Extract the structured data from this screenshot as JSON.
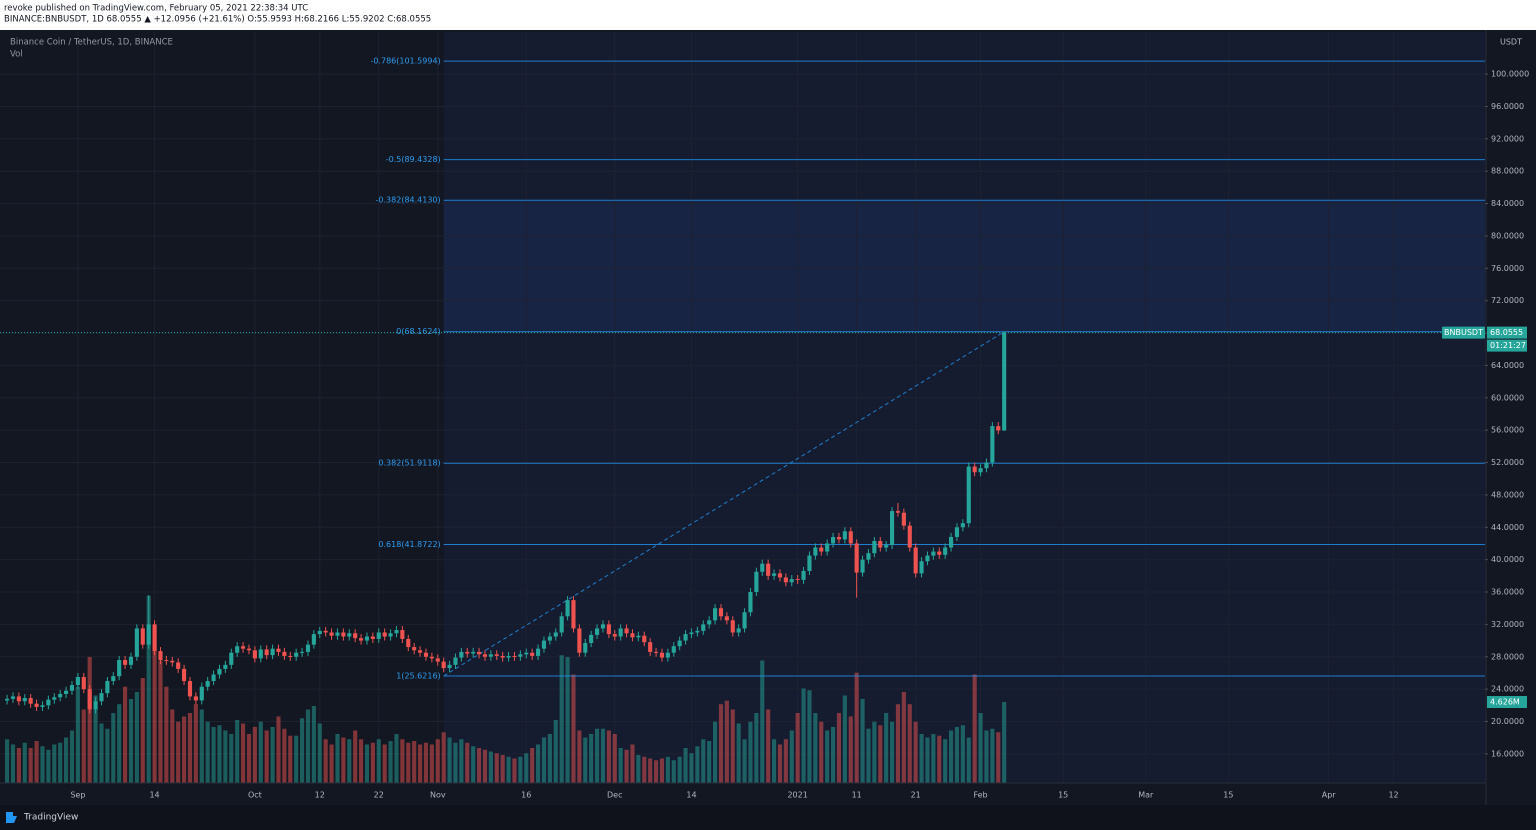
{
  "header": {
    "line1": "revoke published on TradingView.com, February 05, 2021 22:38:34 UTC",
    "line2": "BINANCE:BNBUSDT, 1D  68.0555  ▲ +12.0956 (+21.61%)  O:55.9593  H:68.2166  L:55.9202  C:68.0555"
  },
  "chart_data": {
    "type": "candlestick",
    "title": "Binance Coin / TetherUS, 1D, BINANCE",
    "volume_title": "Vol",
    "up_color": "#26a69a",
    "down_color": "#ef5350",
    "grid": true,
    "open": [
      22.6,
      22.8,
      23.1,
      22.5,
      22.9,
      22.2,
      21.8,
      22.0,
      22.7,
      23.0,
      23.4,
      23.8,
      24.5,
      25.5,
      24.0,
      21.5,
      22.5,
      23.5,
      25.0,
      25.6,
      27.6,
      27.0,
      28.0,
      31.5,
      29.5,
      32.0,
      28.7,
      27.6,
      27.5,
      27.3,
      26.5,
      25.0,
      23.1,
      22.6,
      24.3,
      25.0,
      25.8,
      26.5,
      27.0,
      28.5,
      29.3,
      29.0,
      28.8,
      27.8,
      28.9,
      28.2,
      29.0,
      28.6,
      28.1,
      28.0,
      28.5,
      28.6,
      29.5,
      30.8,
      31.2,
      31.0,
      30.6,
      31.0,
      30.5,
      30.9,
      30.3,
      30.0,
      30.5,
      30.2,
      31.0,
      30.5,
      30.9,
      31.3,
      30.2,
      29.2,
      28.8,
      28.5,
      28.0,
      27.8,
      27.4,
      26.6,
      27.0,
      27.9,
      28.6,
      28.4,
      28.6,
      28.3,
      28.0,
      28.3,
      28.1,
      27.9,
      28.1,
      28.0,
      28.3,
      28.5,
      28.1,
      29.0,
      30.0,
      30.5,
      31.0,
      33.0,
      35.0,
      31.5,
      28.5,
      29.7,
      30.7,
      31.5,
      32.0,
      30.8,
      30.5,
      31.5,
      30.9,
      30.4,
      30.6,
      29.8,
      28.6,
      28.5,
      27.9,
      28.5,
      29.3,
      30.0,
      30.8,
      31.0,
      31.2,
      32.0,
      32.5,
      34.0,
      33.0,
      32.5,
      31.0,
      31.5,
      33.5,
      36.0,
      38.5,
      39.5,
      38.0,
      38.3,
      37.8,
      37.2,
      37.6,
      37.5,
      38.6,
      40.5,
      41.5,
      41.0,
      42.0,
      42.8,
      42.5,
      43.5,
      42.0,
      38.4,
      40.0,
      40.8,
      42.3,
      41.5,
      41.8,
      46.0,
      45.8,
      44.2,
      41.5,
      38.3,
      39.8,
      40.5,
      41.0,
      40.6,
      41.5,
      42.8,
      44.0,
      44.5,
      51.5,
      50.8,
      51.3,
      52.0,
      56.5,
      55.96
    ],
    "high": [
      23.3,
      23.6,
      23.6,
      23.4,
      23.4,
      22.7,
      22.5,
      23.2,
      23.5,
      23.9,
      24.3,
      25.0,
      26.0,
      26.0,
      24.5,
      23.0,
      24.0,
      25.5,
      26.1,
      28.1,
      28.1,
      28.5,
      32.0,
      32.0,
      35.6,
      32.5,
      29.2,
      28.1,
      28.0,
      27.8,
      27.0,
      25.5,
      23.6,
      24.8,
      25.5,
      26.3,
      27.0,
      27.5,
      29.0,
      29.8,
      29.8,
      29.5,
      29.3,
      29.4,
      29.4,
      29.5,
      29.5,
      29.1,
      28.6,
      29.0,
      29.1,
      30.0,
      31.3,
      31.7,
      31.7,
      31.5,
      31.5,
      31.5,
      31.4,
      31.4,
      30.8,
      31.0,
      31.0,
      31.5,
      31.5,
      31.4,
      31.8,
      31.8,
      30.7,
      29.7,
      29.3,
      29.0,
      28.5,
      28.3,
      27.9,
      27.5,
      28.4,
      29.1,
      29.1,
      29.1,
      29.1,
      28.8,
      28.8,
      28.8,
      28.6,
      28.6,
      28.6,
      28.8,
      29.0,
      29.0,
      29.5,
      30.5,
      31.0,
      31.5,
      33.5,
      35.5,
      35.5,
      32.0,
      30.2,
      31.2,
      32.0,
      32.5,
      32.5,
      31.3,
      32.0,
      32.0,
      31.4,
      31.1,
      31.1,
      30.3,
      29.1,
      29.0,
      29.0,
      29.8,
      30.5,
      31.3,
      31.5,
      31.7,
      32.5,
      33.0,
      34.5,
      34.5,
      33.5,
      33.0,
      32.0,
      34.0,
      36.5,
      39.0,
      40.0,
      40.0,
      38.8,
      38.8,
      38.3,
      38.1,
      38.1,
      39.1,
      41.0,
      42.0,
      42.0,
      42.5,
      43.3,
      43.3,
      44.0,
      44.0,
      42.5,
      40.5,
      41.3,
      42.8,
      42.8,
      42.3,
      46.5,
      47.0,
      46.3,
      44.7,
      42.0,
      40.3,
      41.0,
      41.5,
      41.5,
      42.0,
      43.3,
      44.5,
      45.0,
      52.0,
      52.0,
      51.8,
      52.5,
      57.0,
      57.0,
      68.22
    ],
    "low": [
      22.1,
      22.3,
      22.0,
      22.0,
      21.7,
      21.3,
      21.3,
      21.5,
      22.2,
      22.5,
      22.9,
      23.3,
      24.0,
      23.5,
      21.0,
      21.0,
      22.0,
      23.0,
      24.5,
      25.1,
      26.5,
      26.5,
      27.5,
      29.0,
      29.0,
      28.2,
      27.1,
      27.0,
      26.8,
      26.0,
      24.5,
      22.6,
      22.1,
      22.1,
      23.8,
      24.5,
      25.3,
      26.0,
      26.5,
      28.0,
      28.5,
      28.3,
      27.3,
      27.3,
      27.7,
      27.7,
      28.1,
      27.6,
      27.5,
      27.5,
      28.0,
      28.1,
      29.0,
      30.3,
      30.5,
      30.1,
      30.1,
      30.0,
      30.0,
      29.8,
      29.5,
      29.5,
      29.7,
      29.7,
      30.0,
      30.0,
      30.4,
      29.7,
      28.7,
      28.3,
      28.0,
      27.5,
      27.3,
      26.9,
      26.1,
      26.1,
      26.5,
      27.4,
      27.9,
      27.9,
      27.8,
      27.5,
      27.5,
      27.6,
      27.4,
      27.4,
      27.5,
      27.5,
      27.8,
      27.6,
      27.6,
      28.5,
      29.5,
      30.0,
      30.5,
      32.5,
      31.0,
      28.0,
      28.0,
      29.2,
      30.2,
      31.0,
      30.3,
      30.0,
      30.0,
      30.4,
      29.9,
      29.9,
      29.3,
      28.1,
      28.0,
      27.4,
      27.4,
      28.0,
      28.8,
      29.5,
      30.3,
      30.5,
      30.7,
      31.5,
      32.0,
      32.5,
      32.0,
      30.5,
      30.5,
      31.0,
      33.0,
      35.5,
      38.0,
      37.5,
      37.5,
      37.3,
      36.7,
      36.7,
      37.0,
      37.0,
      38.1,
      40.0,
      40.5,
      40.5,
      41.5,
      42.0,
      42.0,
      41.5,
      35.3,
      37.9,
      39.5,
      40.3,
      41.0,
      41.0,
      41.3,
      45.3,
      43.7,
      41.0,
      37.8,
      37.8,
      39.3,
      40.0,
      40.1,
      40.1,
      41.0,
      42.3,
      43.5,
      44.0,
      50.3,
      50.3,
      50.8,
      51.5,
      55.5,
      55.92
    ],
    "close": [
      22.8,
      23.1,
      22.5,
      22.9,
      22.2,
      21.8,
      22.0,
      22.7,
      23.0,
      23.4,
      23.8,
      24.5,
      25.5,
      24.0,
      21.5,
      22.5,
      23.5,
      25.0,
      25.6,
      27.6,
      27.0,
      28.0,
      31.5,
      29.5,
      32.0,
      28.7,
      27.6,
      27.5,
      27.3,
      26.5,
      25.0,
      23.1,
      22.6,
      24.3,
      25.0,
      25.8,
      26.5,
      27.0,
      28.5,
      29.3,
      29.0,
      28.8,
      27.8,
      28.9,
      28.2,
      29.0,
      28.6,
      28.1,
      28.0,
      28.5,
      28.6,
      29.5,
      30.8,
      31.2,
      31.0,
      30.6,
      31.0,
      30.5,
      30.9,
      30.3,
      30.0,
      30.5,
      30.2,
      31.0,
      30.5,
      30.9,
      31.3,
      30.2,
      29.2,
      28.8,
      28.5,
      28.0,
      27.8,
      27.4,
      26.6,
      27.0,
      27.9,
      28.6,
      28.4,
      28.6,
      28.3,
      28.0,
      28.3,
      28.1,
      27.9,
      28.1,
      28.0,
      28.3,
      28.5,
      28.1,
      29.0,
      30.0,
      30.5,
      31.0,
      33.0,
      35.0,
      31.5,
      28.5,
      29.7,
      30.7,
      31.5,
      32.0,
      30.8,
      30.5,
      31.5,
      30.9,
      30.4,
      30.6,
      29.8,
      28.6,
      28.5,
      27.9,
      28.5,
      29.3,
      30.0,
      30.8,
      31.0,
      31.2,
      32.0,
      32.5,
      34.0,
      33.0,
      32.5,
      31.0,
      31.5,
      33.5,
      36.0,
      38.5,
      39.5,
      38.0,
      38.3,
      37.8,
      37.2,
      37.6,
      37.5,
      38.6,
      40.5,
      41.5,
      41.0,
      42.0,
      42.8,
      42.5,
      43.5,
      42.0,
      38.4,
      40.0,
      40.8,
      42.3,
      41.5,
      41.8,
      46.0,
      45.8,
      44.2,
      41.5,
      38.3,
      39.8,
      40.5,
      41.0,
      40.6,
      41.5,
      42.8,
      44.0,
      44.5,
      51.5,
      50.8,
      51.3,
      52.0,
      56.5,
      55.96,
      68.06
    ],
    "volume": [
      2.5,
      2.2,
      2.0,
      2.3,
      2.0,
      2.4,
      2.1,
      1.9,
      2.2,
      2.3,
      2.6,
      3.0,
      5.5,
      4.2,
      7.2,
      5.0,
      3.4,
      3.1,
      4.0,
      4.5,
      5.5,
      4.8,
      5.2,
      6.0,
      10.7,
      9.0,
      7.0,
      5.5,
      4.2,
      3.5,
      3.8,
      4.0,
      4.5,
      4.2,
      3.5,
      3.2,
      3.3,
      3.0,
      2.8,
      3.6,
      3.4,
      2.8,
      3.2,
      3.5,
      3.0,
      3.2,
      3.8,
      3.1,
      2.7,
      2.7,
      3.7,
      4.2,
      4.4,
      3.4,
      2.5,
      2.2,
      2.8,
      2.6,
      2.5,
      3.0,
      2.5,
      2.2,
      2.3,
      2.5,
      2.2,
      2.4,
      2.8,
      2.5,
      2.3,
      2.4,
      2.2,
      2.3,
      2.2,
      2.5,
      2.9,
      2.6,
      2.3,
      2.5,
      2.3,
      2.1,
      2.0,
      1.9,
      1.8,
      1.7,
      1.6,
      1.5,
      1.4,
      1.5,
      1.7,
      2.0,
      2.2,
      2.6,
      2.8,
      3.6,
      7.3,
      7.2,
      6.2,
      3.0,
      2.6,
      2.8,
      3.1,
      3.1,
      3.0,
      2.8,
      2.0,
      1.9,
      2.2,
      1.6,
      1.5,
      1.4,
      1.3,
      1.4,
      1.5,
      1.3,
      1.5,
      2.0,
      1.7,
      2.1,
      2.5,
      2.4,
      3.5,
      4.5,
      4.7,
      4.2,
      3.4,
      2.5,
      3.5,
      4.0,
      7.0,
      4.2,
      2.5,
      2.2,
      2.5,
      3.0,
      4.0,
      5.4,
      5.3,
      4.0,
      3.5,
      3.0,
      3.2,
      4.0,
      5.0,
      3.8,
      6.3,
      4.8,
      3.1,
      3.5,
      3.3,
      4.0,
      3.5,
      4.5,
      5.2,
      4.5,
      3.5,
      2.8,
      2.6,
      2.8,
      2.7,
      2.5,
      3.0,
      3.2,
      3.3,
      2.6,
      6.2,
      4.0,
      3.0,
      3.1,
      2.9,
      4.626
    ],
    "volume_ylim": [
      0,
      42.9
    ],
    "volume_tag": "4.626M",
    "ylim": [
      12.4,
      105.2
    ],
    "y_unit": "USDT",
    "yticks": [
      {
        "value": 16,
        "label": "16.0000"
      },
      {
        "value": 20,
        "label": "20.0000"
      },
      {
        "value": 24,
        "label": "24.0000"
      },
      {
        "value": 28,
        "label": "28.0000"
      },
      {
        "value": 32,
        "label": "32.0000"
      },
      {
        "value": 36,
        "label": "36.0000"
      },
      {
        "value": 40,
        "label": "40.0000"
      },
      {
        "value": 44,
        "label": "44.0000"
      },
      {
        "value": 48,
        "label": "48.0000"
      },
      {
        "value": 52,
        "label": "52.0000"
      },
      {
        "value": 56,
        "label": "56.0000"
      },
      {
        "value": 60,
        "label": "60.0000"
      },
      {
        "value": 64,
        "label": "64.0000"
      },
      {
        "value": 68,
        "label": "68.0000"
      },
      {
        "value": 72,
        "label": "72.0000"
      },
      {
        "value": 76,
        "label": "76.0000"
      },
      {
        "value": 80,
        "label": "80.0000"
      },
      {
        "value": 84,
        "label": "84.0000"
      },
      {
        "value": 88,
        "label": "88.0000"
      },
      {
        "value": 92,
        "label": "92.0000"
      },
      {
        "value": 96,
        "label": "96.0000"
      },
      {
        "value": 100,
        "label": "100.0000"
      }
    ],
    "xlim": [
      -1.2,
      250.5
    ],
    "xticks": [
      {
        "value": 12,
        "label": "Sep"
      },
      {
        "value": 25,
        "label": "14"
      },
      {
        "value": 42,
        "label": "Oct"
      },
      {
        "value": 53,
        "label": "12"
      },
      {
        "value": 63,
        "label": "22"
      },
      {
        "value": 73,
        "label": "Nov"
      },
      {
        "value": 88,
        "label": "16"
      },
      {
        "value": 103,
        "label": "Dec"
      },
      {
        "value": 116,
        "label": "14"
      },
      {
        "value": 134,
        "label": "2021"
      },
      {
        "value": 144,
        "label": "11"
      },
      {
        "value": 154,
        "label": "21"
      },
      {
        "value": 165,
        "label": "Feb"
      },
      {
        "value": 179,
        "label": "15"
      },
      {
        "value": 193,
        "label": "Mar"
      },
      {
        "value": 207,
        "label": "15"
      },
      {
        "value": 224,
        "label": "Apr"
      },
      {
        "value": 235,
        "label": "12"
      }
    ],
    "fib_anchor": [
      74,
      169
    ],
    "fib_levels": [
      {
        "value": 101.5994,
        "label": "-0.786(101.5994)"
      },
      {
        "value": 89.4328,
        "label": "-0.5(89.4328)"
      },
      {
        "value": 84.413,
        "label": "-0.382(84.4130)"
      },
      {
        "value": 68.1624,
        "label": "0(68.1624)"
      },
      {
        "value": 51.9118,
        "label": "0.382(51.9118)"
      },
      {
        "value": 41.8722,
        "label": "0.618(41.8722)"
      },
      {
        "value": 25.6216,
        "label": "1(25.6216)"
      }
    ],
    "fib_color": "#2196f3",
    "price_tag": {
      "symbol": "BNBUSDT",
      "value": 68.0555,
      "countdown": "01:21:27"
    }
  },
  "footer": {
    "brand": "TradingView"
  }
}
